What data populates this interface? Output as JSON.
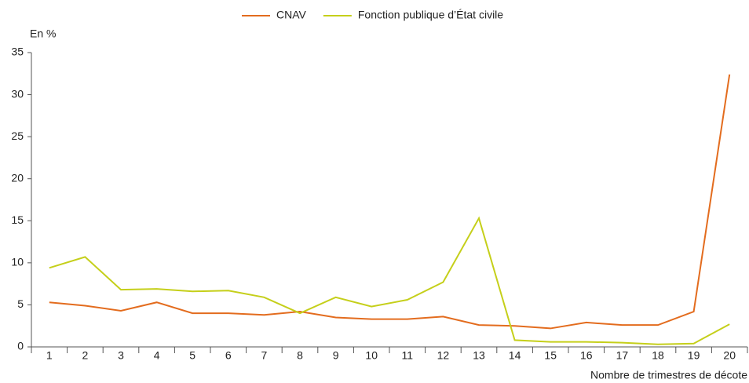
{
  "chart_data": {
    "type": "line",
    "y_label": "En %",
    "x_label": "Nombre de trimestres de décote",
    "categories": [
      1,
      2,
      3,
      4,
      5,
      6,
      7,
      8,
      9,
      10,
      11,
      12,
      13,
      14,
      15,
      16,
      17,
      18,
      19,
      20
    ],
    "series": [
      {
        "name": "CNAV",
        "color": "#e36c1e",
        "values": [
          5.3,
          4.9,
          4.3,
          5.3,
          4.0,
          4.0,
          3.8,
          4.2,
          3.5,
          3.3,
          3.3,
          3.6,
          2.6,
          2.5,
          2.2,
          2.9,
          2.6,
          2.6,
          4.2,
          32.4
        ]
      },
      {
        "name": "Fonction publique d’État civile",
        "color": "#c5cf1a",
        "values": [
          9.4,
          10.7,
          6.8,
          6.9,
          6.6,
          6.7,
          5.9,
          4.0,
          5.9,
          4.8,
          5.6,
          7.7,
          15.3,
          0.8,
          0.6,
          0.6,
          0.5,
          0.3,
          0.4,
          2.7
        ]
      }
    ],
    "ylim": [
      0,
      35
    ],
    "yticks": [
      0,
      5,
      10,
      15,
      20,
      25,
      30,
      35
    ]
  }
}
